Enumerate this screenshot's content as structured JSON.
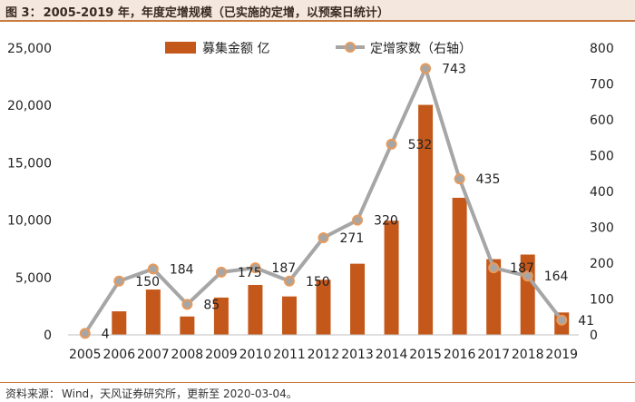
{
  "figure": {
    "label": "图 3：",
    "title": "2005-2019 年，年度定增规模（已实施的定增，以预案日统计）",
    "source_label": "资料来源：",
    "source_text": "Wind，天风证券研究所，更新至 2020-03-04。"
  },
  "colors": {
    "bar": "#c4581a",
    "line": "#a6a6a6",
    "marker_fill": "#a6a6a6",
    "marker_edge": "#e89a5a",
    "title_bg": "#f3e7de",
    "rule": "#c97a3e"
  },
  "chart_data": {
    "type": "bar+line",
    "title": "2005-2019 年，年度定增规模（已实施的定增，以预案日统计）",
    "categories": [
      "2005",
      "2006",
      "2007",
      "2008",
      "2009",
      "2010",
      "2011",
      "2012",
      "2013",
      "2014",
      "2015",
      "2016",
      "2017",
      "2018",
      "2019"
    ],
    "series": [
      {
        "name": "募集金额 亿",
        "type": "bar",
        "axis": "left",
        "values": [
          0,
          2050,
          3950,
          1600,
          3250,
          4350,
          3350,
          4800,
          6200,
          9950,
          20050,
          11950,
          6600,
          7000,
          1950
        ]
      },
      {
        "name": "定增家数（右轴）",
        "type": "line",
        "axis": "right",
        "values": [
          4,
          150,
          184,
          85,
          175,
          187,
          150,
          271,
          320,
          532,
          743,
          435,
          187,
          164,
          41
        ],
        "data_labels": [
          "4",
          "150",
          "184",
          "85",
          "175",
          "187",
          "150",
          "271",
          "320",
          "532",
          "743",
          "435",
          "187",
          "164",
          "41"
        ]
      }
    ],
    "y_left": {
      "min": 0,
      "max": 25000,
      "ticks": [
        "0",
        "5,000",
        "10,000",
        "15,000",
        "20,000",
        "25,000"
      ]
    },
    "y_right": {
      "min": 0,
      "max": 800,
      "ticks": [
        "0",
        "100",
        "200",
        "300",
        "400",
        "500",
        "600",
        "700",
        "800"
      ]
    },
    "legend": {
      "position": "top",
      "entries": [
        "募集金额 亿",
        "定增家数（右轴）"
      ]
    },
    "grid": false
  }
}
